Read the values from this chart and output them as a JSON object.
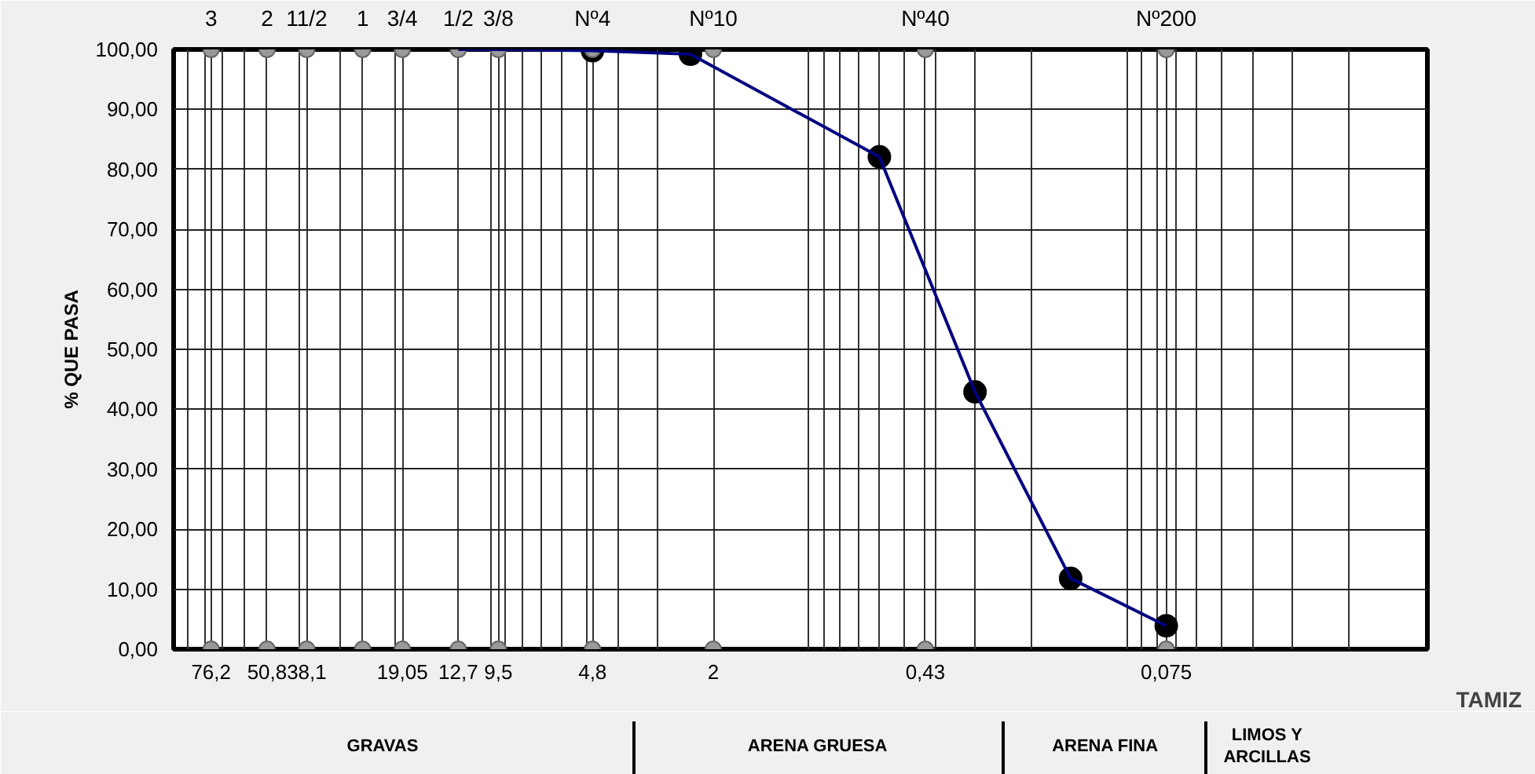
{
  "chart_data": {
    "type": "line",
    "xlabel": "TAMIZ",
    "ylabel": "% QUE PASA",
    "annotations": [
      "GRAVAS",
      "ARENA GRUESA",
      "ARENA FINA",
      "LIMOS Y\nARCILLAS",
      {
        "text": "3",
        "x": 76.2,
        "y": 100
      },
      {
        "text": "2",
        "x": 50.8,
        "y": 100
      },
      {
        "text": "11/2",
        "x": 38.1,
        "y": 100
      },
      {
        "text": "1",
        "x": 25.4,
        "y": 100
      },
      {
        "text": "3/4",
        "x": 19.05,
        "y": 100
      },
      {
        "text": "1/2",
        "x": 12.7,
        "y": 100
      },
      {
        "text": "3/8",
        "x": 9.5,
        "y": 100
      },
      {
        "text": "Nº4",
        "x": 4.8,
        "y": 100
      },
      {
        "text": "Nº10",
        "x": 2,
        "y": 100
      },
      {
        "text": "Nº40",
        "x": 0.43,
        "y": 100
      },
      {
        "text": "Nº200",
        "x": 0.075,
        "y": 100
      }
    ],
    "log": "x",
    "xlim": [
      100,
      0.0113
    ],
    "ylim": [
      0,
      100
    ],
    "yticks": [
      {
        "value": 0,
        "label": "0,00"
      },
      {
        "value": 10,
        "label": "10,00"
      },
      {
        "value": 20,
        "label": "20,00"
      },
      {
        "value": 30,
        "label": "30,00"
      },
      {
        "value": 40,
        "label": "40,00"
      },
      {
        "value": 50,
        "label": "50,00"
      },
      {
        "value": 60,
        "label": "60,00"
      },
      {
        "value": 70,
        "label": "70,00"
      },
      {
        "value": 80,
        "label": "80,00"
      },
      {
        "value": 90,
        "label": "90,00"
      },
      {
        "value": 100,
        "label": "100,00"
      }
    ],
    "xticks": [
      {
        "value": 76.2,
        "label": "76,2"
      },
      {
        "value": 50.8,
        "label": "50,8"
      },
      {
        "value": 38.1,
        "label": "38,1"
      },
      {
        "value": 25.4,
        "label": null
      },
      {
        "value": 19.05,
        "label": "19,05"
      },
      {
        "value": 12.7,
        "label": "12,7"
      },
      {
        "value": 9.5,
        "label": "9,5"
      },
      {
        "value": 4.8,
        "label": "4,8"
      },
      {
        "value": 2,
        "label": "2"
      },
      {
        "value": 0.43,
        "label": "0,43"
      },
      {
        "value": 0.075,
        "label": "0,075"
      },
      {
        "value": 90,
        "label": null
      },
      {
        "value": 80,
        "label": null
      },
      {
        "value": 70,
        "label": null
      },
      {
        "value": 60,
        "label": null
      },
      {
        "value": 40,
        "label": null
      },
      {
        "value": 30,
        "label": null
      },
      {
        "value": 20,
        "label": null
      },
      {
        "value": 10,
        "label": null
      },
      {
        "value": 9,
        "label": null
      },
      {
        "value": 8,
        "label": null
      },
      {
        "value": 7,
        "label": null
      },
      {
        "value": 6,
        "label": null
      },
      {
        "value": 5,
        "label": null
      },
      {
        "value": 4,
        "label": null
      },
      {
        "value": 3,
        "label": null
      },
      {
        "value": 1,
        "label": null
      },
      {
        "value": 0.9,
        "label": null
      },
      {
        "value": 0.8,
        "label": null
      },
      {
        "value": 0.7,
        "label": null
      },
      {
        "value": 0.6,
        "label": null
      },
      {
        "value": 0.5,
        "label": null
      },
      {
        "value": 0.4,
        "label": null
      },
      {
        "value": 0.3,
        "label": null
      },
      {
        "value": 0.2,
        "label": null
      },
      {
        "value": 0.1,
        "label": null
      },
      {
        "value": 0.09,
        "label": null
      },
      {
        "value": 0.08,
        "label": null
      },
      {
        "value": 0.07,
        "label": null
      },
      {
        "value": 0.06,
        "label": null
      },
      {
        "value": 0.05,
        "label": null
      },
      {
        "value": 0.04,
        "label": null
      },
      {
        "value": 0.03,
        "label": null
      },
      {
        "value": 0.02,
        "label": null
      }
    ],
    "grid": true,
    "series": [
      {
        "type": "scatter",
        "color": "#000000",
        "x": [
          4.8,
          2.36,
          0.6,
          0.3,
          0.15,
          0.075
        ],
        "values": [
          99.8,
          99.2,
          82.1,
          42.9,
          11.8,
          3.9
        ]
      },
      {
        "type": "scatter",
        "color": "#999999",
        "x": [
          76.2,
          50.8,
          38.1,
          25.4,
          19.05,
          12.7,
          9.5,
          4.8,
          2,
          0.43,
          0.075
        ],
        "values": [
          100,
          100,
          100,
          100,
          100,
          100,
          100,
          100,
          100,
          100,
          100
        ]
      },
      {
        "type": "scatter",
        "color": "#999999",
        "x": [
          76.2,
          50.8,
          38.1,
          25.4,
          19.05,
          12.7,
          9.5,
          4.8,
          2,
          0.43,
          0.075
        ],
        "values": [
          0,
          0,
          0,
          0,
          0,
          0,
          0,
          0,
          0,
          0,
          0
        ]
      },
      {
        "color": "#000080",
        "x": [
          12.7,
          9.5,
          4.8,
          2.36,
          0.6,
          0.3,
          0.15,
          0.075
        ],
        "values": [
          100,
          100,
          99.8,
          99.2,
          82.1,
          42.9,
          11.8,
          3.9
        ]
      }
    ]
  }
}
